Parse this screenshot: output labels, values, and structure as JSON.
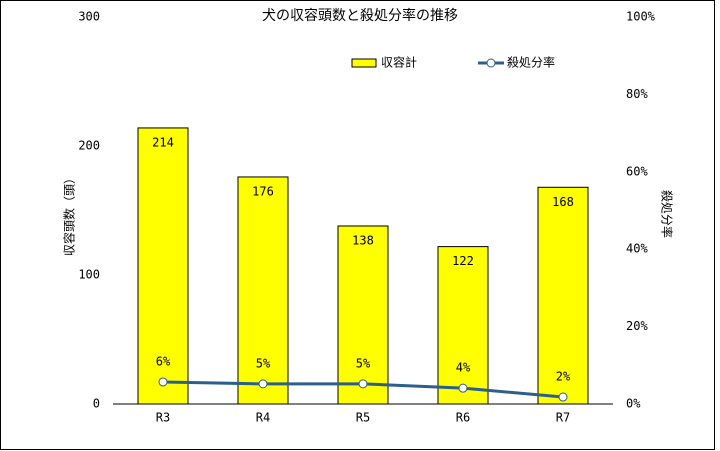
{
  "chart_data": {
    "type": "bar",
    "title": "犬の収容頭数と殺処分率の推移",
    "categories": [
      "R3",
      "R4",
      "R5",
      "R6",
      "R7"
    ],
    "series": [
      {
        "name": "収容計",
        "type": "bar",
        "color": "#ffff00",
        "values": [
          214,
          176,
          138,
          122,
          168
        ]
      },
      {
        "name": "殺処分率",
        "type": "line",
        "axis": "y2",
        "color": "#2b5f8c",
        "values": [
          5.7,
          5.2,
          5.2,
          4.1,
          1.8
        ],
        "value_labels": [
          "6%",
          "5%",
          "5%",
          "4%",
          "2%"
        ]
      }
    ],
    "ylabel": "収容頭数（頭）",
    "y2label": "殺処分率",
    "ylim": [
      0,
      300
    ],
    "yticks": [
      0,
      100,
      200,
      300
    ],
    "y2lim": [
      0,
      100
    ],
    "y2ticks": [
      {
        "value": 0,
        "label": "0%"
      },
      {
        "value": 20,
        "label": "20%"
      },
      {
        "value": 40,
        "label": "40%"
      },
      {
        "value": 60,
        "label": "60%"
      },
      {
        "value": 80,
        "label": "80%"
      },
      {
        "value": 100,
        "label": "100%"
      }
    ],
    "grid": false
  }
}
